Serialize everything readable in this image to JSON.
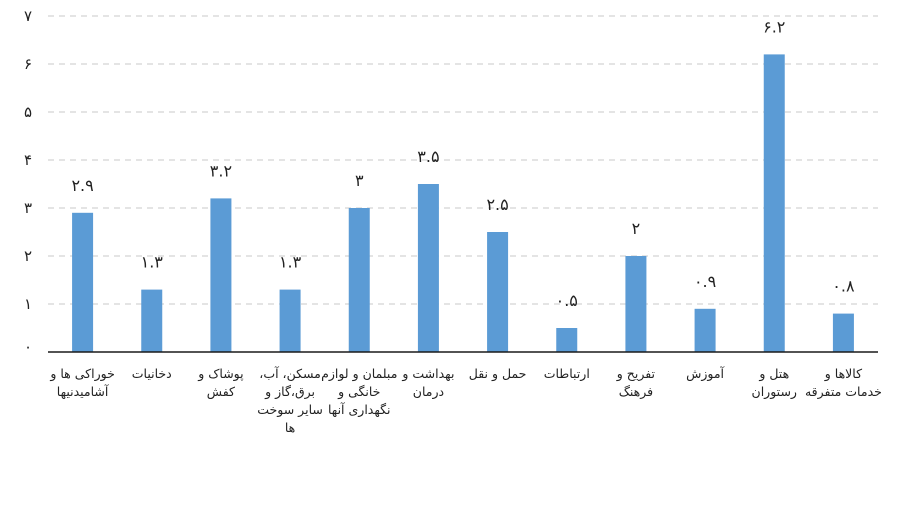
{
  "chart_data": {
    "type": "bar",
    "categories": [
      [
        "خوراکی ها و",
        "آشامیدنیها"
      ],
      [
        "دخانیات"
      ],
      [
        "پوشاک و",
        "کفش"
      ],
      [
        "مسکن، آب،",
        "برق،گاز و",
        "سایر سوخت",
        "ها"
      ],
      [
        "مبلمان و لوازم",
        "خانگی و",
        "نگهداری آنها"
      ],
      [
        "بهداشت و",
        "درمان"
      ],
      [
        "حمل و نقل"
      ],
      [
        "ارتباطات"
      ],
      [
        "تفریح و",
        "فرهنگ"
      ],
      [
        "آموزش"
      ],
      [
        "هتل و",
        "رستوران"
      ],
      [
        "کالاها و",
        "خدمات متفرقه"
      ]
    ],
    "values": [
      2.9,
      1.3,
      3.2,
      1.3,
      3,
      3.5,
      2.5,
      0.5,
      2,
      0.9,
      6.2,
      0.8
    ],
    "value_labels": [
      "۲.۹",
      "۱.۳",
      "۳.۲",
      "۱.۳",
      "۳",
      "۳.۵",
      "۲.۵",
      "۰.۵",
      "۲",
      "۰.۹",
      "۶.۲",
      "۰.۸"
    ],
    "y_ticks": [
      0,
      1,
      2,
      3,
      4,
      5,
      6,
      7
    ],
    "y_tick_labels": [
      "۰",
      "۱",
      "۲",
      "۳",
      "۴",
      "۵",
      "۶",
      "۷"
    ],
    "ylim": [
      0,
      7
    ],
    "grid": true,
    "legend": "none",
    "bar_color": "#5b9bd5",
    "grid_color": "#c9c9c9",
    "axis_color": "#1a1a1a",
    "text_color": "#222222"
  }
}
